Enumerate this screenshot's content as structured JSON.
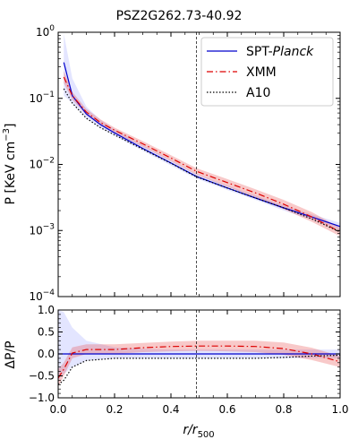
{
  "chart_data": [
    {
      "type": "line",
      "title": "PSZ2G262.73-40.92",
      "xlabel_main": "r/r",
      "xlabel_sub": "500",
      "ylabel_main": "P [KeV cm",
      "ylabel_sup": "−3",
      "ylabel_close": "]",
      "xlim": [
        0,
        1
      ],
      "ylim": [
        0.0001,
        1
      ],
      "yscale": "log",
      "x_ticks": [
        "0.0",
        "0.2",
        "0.4",
        "0.6",
        "0.8",
        "1.0"
      ],
      "y_ticks": [
        {
          "base": "10",
          "exp": "−4",
          "value": 0.0001
        },
        {
          "base": "10",
          "exp": "−3",
          "value": 0.001
        },
        {
          "base": "10",
          "exp": "−2",
          "value": 0.01
        },
        {
          "base": "10",
          "exp": "−1",
          "value": 0.1
        },
        {
          "base": "10",
          "exp": "0",
          "value": 1
        }
      ],
      "vline_x": 0.49,
      "legend_position": "top-right",
      "legend": {
        "spt_prefix": "SPT-",
        "spt_italic": "Planck",
        "xmm": "XMM",
        "a10": "A10"
      },
      "series": [
        {
          "key": "spt",
          "color": "#0000cc",
          "style": "solid",
          "x": [
            0.02,
            0.05,
            0.1,
            0.15,
            0.2,
            0.3,
            0.4,
            0.49,
            0.6,
            0.7,
            0.8,
            0.9,
            1.0
          ],
          "y": [
            0.35,
            0.11,
            0.058,
            0.04,
            0.03,
            0.0175,
            0.0105,
            0.0066,
            0.0044,
            0.0031,
            0.0022,
            0.0016,
            0.00115
          ],
          "lower": [
            0.11,
            0.085,
            0.05,
            0.036,
            0.027,
            0.016,
            0.0096,
            0.0061,
            0.0041,
            0.0029,
            0.002,
            0.00145,
            0.00102
          ],
          "upper": [
            0.95,
            0.2,
            0.075,
            0.047,
            0.034,
            0.0195,
            0.0116,
            0.0072,
            0.0048,
            0.0034,
            0.0024,
            0.00175,
            0.0013
          ]
        },
        {
          "key": "xmm",
          "color": "#dd0000",
          "style": "dashdot",
          "x": [
            0.02,
            0.05,
            0.1,
            0.15,
            0.2,
            0.3,
            0.4,
            0.49,
            0.6,
            0.7,
            0.8,
            0.9,
            1.0
          ],
          "y": [
            0.21,
            0.11,
            0.062,
            0.043,
            0.033,
            0.0205,
            0.0125,
            0.0079,
            0.0053,
            0.0037,
            0.0025,
            0.0016,
            0.00095
          ],
          "lower": [
            0.17,
            0.095,
            0.056,
            0.039,
            0.03,
            0.0185,
            0.0112,
            0.007,
            0.0046,
            0.0032,
            0.0021,
            0.00135,
            0.00082
          ],
          "upper": [
            0.26,
            0.125,
            0.069,
            0.048,
            0.036,
            0.0225,
            0.0138,
            0.0088,
            0.006,
            0.0042,
            0.0029,
            0.0019,
            0.0011
          ]
        },
        {
          "key": "a10",
          "color": "#000000",
          "style": "dotted",
          "x": [
            0.02,
            0.05,
            0.1,
            0.15,
            0.2,
            0.3,
            0.4,
            0.49,
            0.6,
            0.7,
            0.8,
            0.9,
            1.0
          ],
          "y": [
            0.14,
            0.085,
            0.05,
            0.036,
            0.028,
            0.017,
            0.0104,
            0.0065,
            0.0044,
            0.0031,
            0.0022,
            0.0015,
            0.00095
          ]
        }
      ]
    },
    {
      "type": "line",
      "xlabel_main": "r/r",
      "xlabel_sub": "500",
      "ylabel": "ΔP/P",
      "xlim": [
        0,
        1
      ],
      "ylim": [
        -1,
        1
      ],
      "x_ticks": [
        "0.0",
        "0.2",
        "0.4",
        "0.6",
        "0.8",
        "1.0"
      ],
      "y_ticks": [
        {
          "label": "−1.0",
          "value": -1
        },
        {
          "label": "−0.5",
          "value": -0.5
        },
        {
          "label": "0.0",
          "value": 0
        },
        {
          "label": "0.5",
          "value": 0.5
        },
        {
          "label": "1.0",
          "value": 1
        }
      ],
      "vline_x": 0.49,
      "series": [
        {
          "key": "spt",
          "color": "#0000cc",
          "style": "solid",
          "x": [
            0.0,
            0.02,
            0.05,
            0.1,
            0.2,
            0.3,
            0.4,
            0.5,
            0.6,
            0.7,
            0.8,
            0.9,
            1.0
          ],
          "y": [
            0.0,
            0.0,
            0.0,
            0.0,
            0.0,
            0.0,
            0.0,
            0.0,
            0.0,
            0.0,
            0.0,
            0.0,
            0.0
          ],
          "lower": [
            -0.6,
            -0.45,
            -0.3,
            -0.15,
            -0.1,
            -0.1,
            -0.1,
            -0.1,
            -0.1,
            -0.1,
            -0.1,
            -0.1,
            -0.1
          ],
          "upper": [
            1.0,
            0.95,
            0.6,
            0.3,
            0.15,
            0.12,
            0.1,
            0.1,
            0.1,
            0.1,
            0.1,
            0.1,
            0.1
          ]
        },
        {
          "key": "xmm",
          "color": "#dd0000",
          "style": "dashdot",
          "x": [
            0.0,
            0.02,
            0.05,
            0.1,
            0.2,
            0.3,
            0.4,
            0.5,
            0.6,
            0.7,
            0.8,
            0.9,
            1.0
          ],
          "y": [
            -0.55,
            -0.35,
            0.02,
            0.1,
            0.1,
            0.14,
            0.17,
            0.18,
            0.18,
            0.17,
            0.12,
            0.0,
            -0.18
          ],
          "lower": [
            -0.75,
            -0.5,
            -0.1,
            0.0,
            0.0,
            0.04,
            0.06,
            0.07,
            0.06,
            0.04,
            -0.02,
            -0.14,
            -0.3
          ],
          "upper": [
            -0.35,
            -0.2,
            0.15,
            0.22,
            0.22,
            0.25,
            0.28,
            0.3,
            0.3,
            0.3,
            0.26,
            0.14,
            -0.05
          ]
        },
        {
          "key": "a10",
          "color": "#000000",
          "style": "dotted",
          "x": [
            0.0,
            0.02,
            0.05,
            0.1,
            0.2,
            0.3,
            0.4,
            0.5,
            0.6,
            0.7,
            0.8,
            0.9,
            1.0
          ],
          "y": [
            -0.7,
            -0.6,
            -0.3,
            -0.15,
            -0.1,
            -0.1,
            -0.1,
            -0.1,
            -0.1,
            -0.1,
            -0.08,
            -0.05,
            -0.03
          ]
        }
      ]
    }
  ]
}
